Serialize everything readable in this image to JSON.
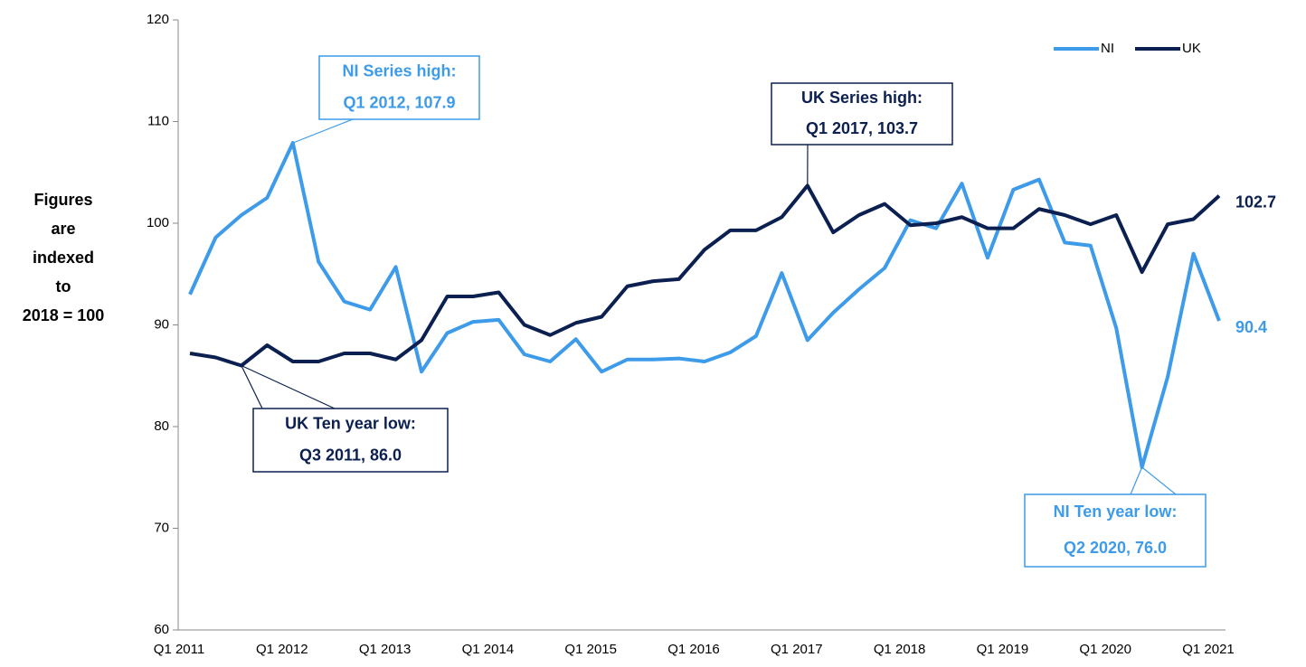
{
  "chart_data": {
    "type": "line",
    "y_label": [
      "Figures",
      "are",
      "indexed",
      "to",
      "2018 = 100"
    ],
    "categories": [
      "Q1 2011",
      null,
      null,
      null,
      "Q1 2012",
      null,
      null,
      null,
      "Q1 2013",
      null,
      null,
      null,
      "Q1 2014",
      null,
      null,
      null,
      "Q1 2015",
      null,
      null,
      null,
      "Q1 2016",
      null,
      null,
      null,
      "Q1 2017",
      null,
      null,
      null,
      "Q1 2018",
      null,
      null,
      null,
      "Q1 2019",
      null,
      null,
      null,
      "Q1 2020",
      null,
      null,
      null,
      "Q1 2021"
    ],
    "series": [
      {
        "name": "NI",
        "color": "#3d9be9",
        "values": [
          93.0,
          98.6,
          100.8,
          102.5,
          107.9,
          96.2,
          92.3,
          91.5,
          95.7,
          85.4,
          89.2,
          90.3,
          90.5,
          87.1,
          86.4,
          88.6,
          85.4,
          86.6,
          86.6,
          86.7,
          86.4,
          87.3,
          88.9,
          95.1,
          88.5,
          91.2,
          93.5,
          95.6,
          100.3,
          99.5,
          103.9,
          96.6,
          103.3,
          104.3,
          98.1,
          97.8,
          89.7,
          76.0,
          84.9,
          97.0,
          90.4
        ]
      },
      {
        "name": "UK",
        "color": "#0b2050",
        "values": [
          87.2,
          86.8,
          86.0,
          88.0,
          86.4,
          86.4,
          87.2,
          87.2,
          86.6,
          88.5,
          92.8,
          92.8,
          93.2,
          90.0,
          89.0,
          90.2,
          90.8,
          93.8,
          94.3,
          94.5,
          97.4,
          99.3,
          99.3,
          100.6,
          103.7,
          99.1,
          100.8,
          101.9,
          99.8,
          100.0,
          100.6,
          99.5,
          99.5,
          101.4,
          100.8,
          99.9,
          100.8,
          95.2,
          99.9,
          100.4,
          102.7
        ]
      }
    ],
    "ylim": [
      60,
      120
    ],
    "yticks": [
      60,
      70,
      80,
      90,
      100,
      110,
      120
    ],
    "grid": false,
    "legend": "top-right",
    "annotations": [
      {
        "lines": [
          "NI Series high:",
          "Q1 2012, 107.9"
        ]
      },
      {
        "lines": [
          "UK Series high:",
          "Q1 2017, 103.7"
        ]
      },
      {
        "lines": [
          "UK Ten year low:",
          "Q3 2011, 86.0"
        ]
      },
      {
        "lines": [
          "NI Ten year low:",
          "Q2 2020, 76.0"
        ]
      }
    ]
  }
}
